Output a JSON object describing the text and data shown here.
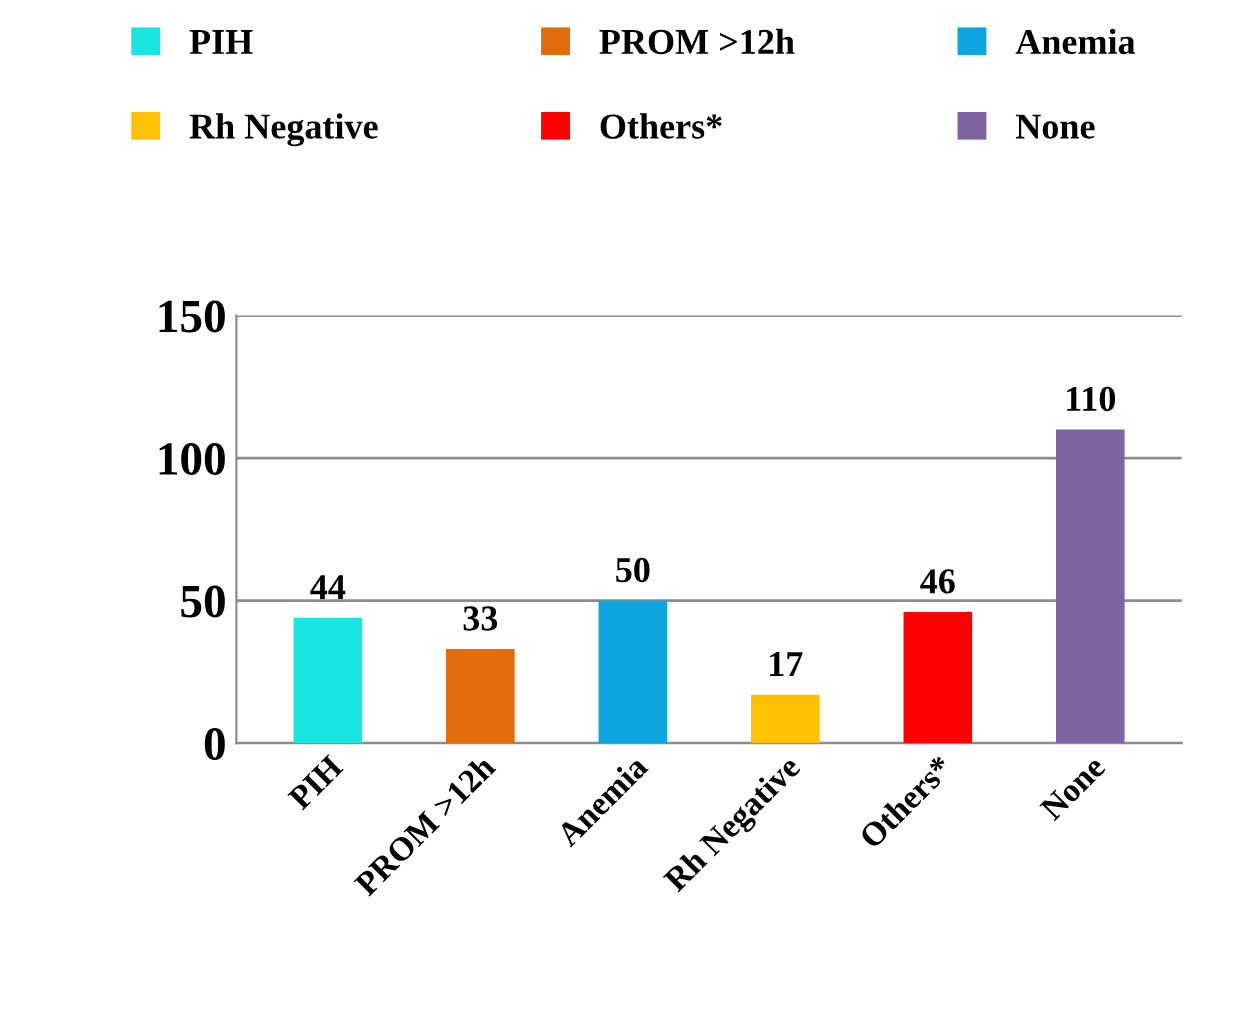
{
  "chart_data": {
    "type": "bar",
    "categories": [
      "PIH",
      "PROM >12h",
      "Anemia",
      "Rh Negative",
      "Others*",
      "None"
    ],
    "series": [
      {
        "name": "PIH",
        "color": "#19e6e0",
        "values": [
          44,
          null,
          null,
          null,
          null,
          null
        ]
      },
      {
        "name": "PROM >12h",
        "color": "#e36c0a",
        "values": [
          null,
          33,
          null,
          null,
          null,
          null
        ]
      },
      {
        "name": "Anemia",
        "color": "#0ea5e0",
        "values": [
          null,
          null,
          50,
          null,
          null,
          null
        ]
      },
      {
        "name": "Rh Negative",
        "color": "#ffc000",
        "values": [
          null,
          null,
          null,
          17,
          null,
          null
        ]
      },
      {
        "name": "Others*",
        "color": "#ff0000",
        "values": [
          null,
          null,
          null,
          null,
          46,
          null
        ]
      },
      {
        "name": "None",
        "color": "#8064a2",
        "values": [
          null,
          null,
          null,
          null,
          null,
          110
        ]
      }
    ],
    "stacked": true,
    "ylim": [
      0,
      150
    ],
    "yticks": [
      0,
      50,
      100,
      150
    ],
    "grid": "y",
    "legend": "top",
    "data_labels": true
  }
}
